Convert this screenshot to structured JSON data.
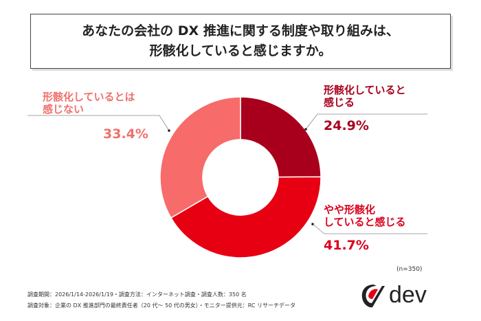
{
  "title": {
    "line1": "あなたの会社の DX 推進に関する制度や取り組みは、",
    "line2": "形骸化していると感じますか。"
  },
  "chart_data": {
    "type": "pie",
    "donut": true,
    "categories": [
      "形骸化していると感じる",
      "やや形骸化していると感じる",
      "形骸化しているとは感じない"
    ],
    "values": [
      24.9,
      41.7,
      33.4
    ],
    "value_labels": [
      "24.9%",
      "41.7%",
      "33.4%"
    ],
    "colors": [
      "#a8001c",
      "#e60012",
      "#f76b6b"
    ],
    "label_colors": [
      "#a8001c",
      "#d9001b",
      "#f0706c"
    ],
    "label_lines": [
      [
        "形骸化していると",
        "感じる"
      ],
      [
        "やや形骸化",
        "していると感じる"
      ],
      [
        "形骸化しているとは",
        "感じない"
      ]
    ],
    "sample": "(n=350)"
  },
  "footer": {
    "line1": "調査期間：2026/1/14-2026/1/19・調査方法：インターネット調査・調査人数：350 名",
    "line2": "調査対象：企業の DX 推進部門の最終責任者（20 代〜 50 代の男女）・モニター提供元：RC リサーチデータ",
    "logo_text": "dev"
  }
}
